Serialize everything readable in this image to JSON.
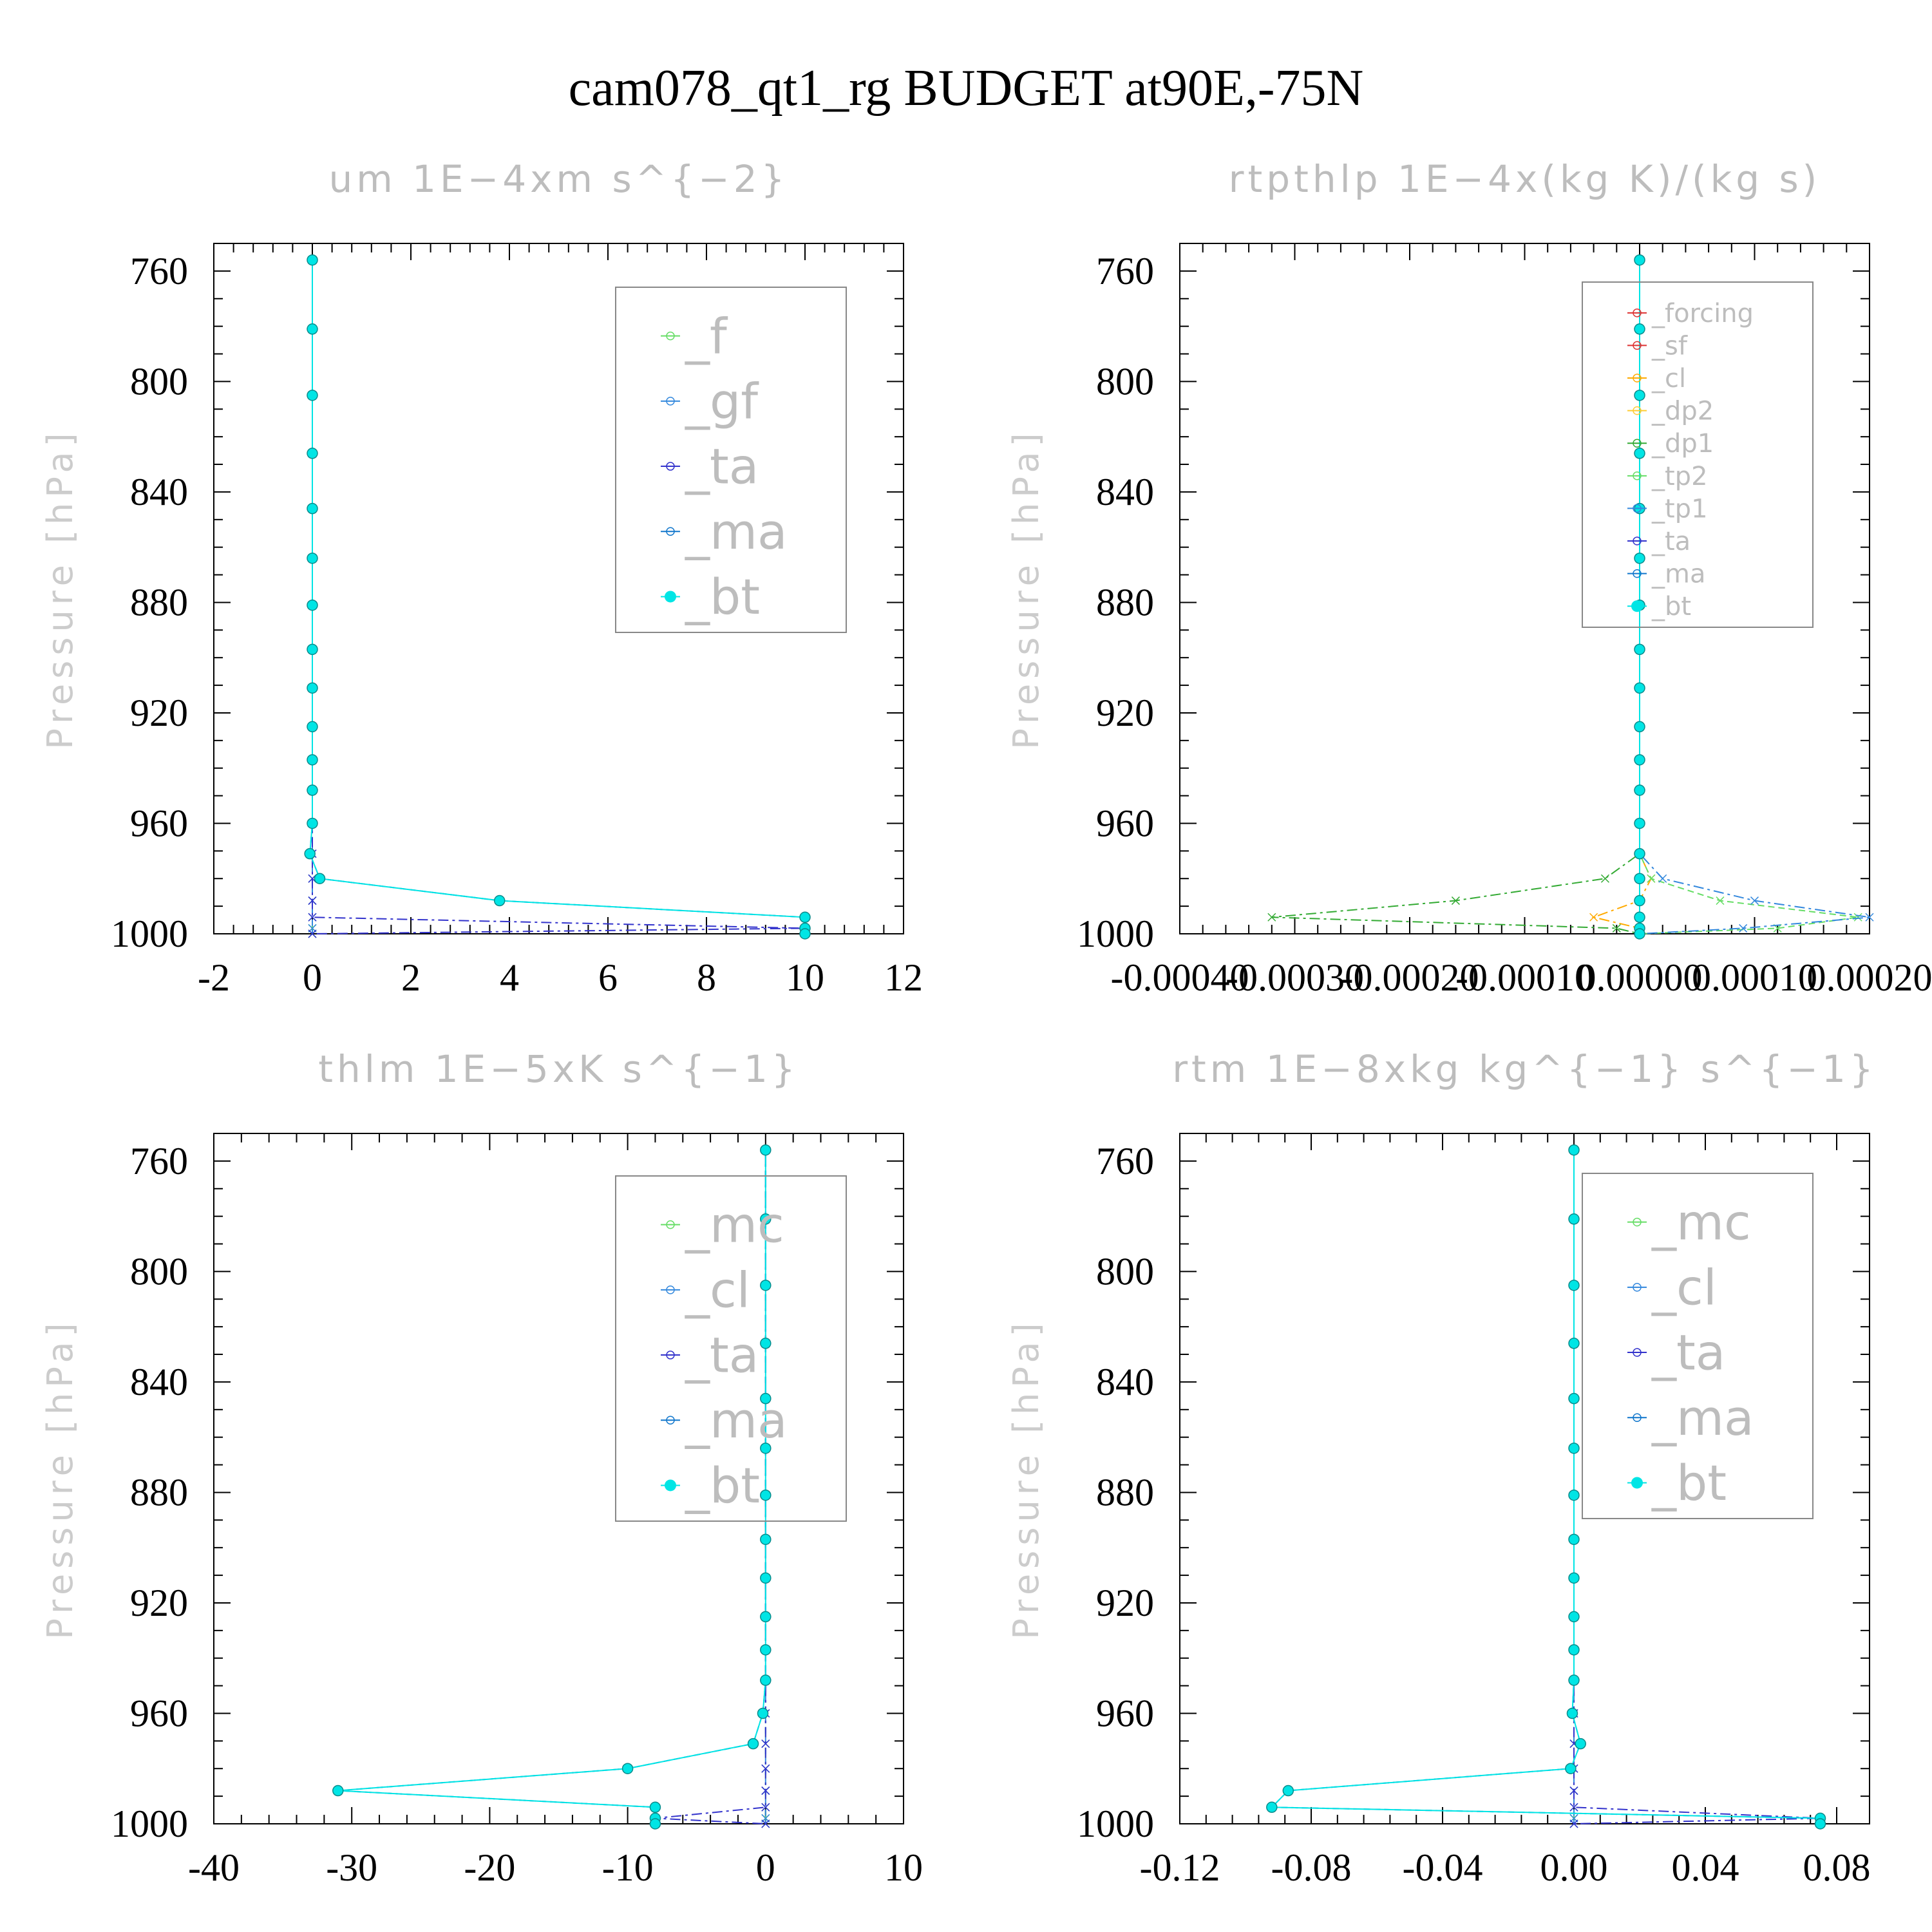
{
  "title": "cam078_qt1_rg  BUDGET at90E,-75N",
  "chart_data": [
    {
      "type": "line",
      "title": "um   1E−4xm s^{−2}",
      "ylabel": "Pressure [hPa]",
      "xlim": [
        -2,
        12
      ],
      "ylim": [
        1000,
        750
      ],
      "xticks": [
        -2,
        0,
        2,
        4,
        6,
        8,
        10,
        12
      ],
      "xtick_labels": [
        "-2",
        "0",
        "2",
        "4",
        "6",
        "8",
        "10",
        "12"
      ],
      "yticks": [
        760,
        800,
        840,
        880,
        920,
        960,
        1000
      ],
      "legend": [
        "_f",
        "_gf",
        "_ta",
        "_ma",
        "_bt"
      ],
      "legend_colors": [
        "#66dd66",
        "#3388dd",
        "#3333cc",
        "#1177cc",
        "#00e5e5"
      ],
      "pressure": [
        756,
        781,
        805,
        826,
        846,
        864,
        881,
        897,
        911,
        925,
        937,
        948,
        960,
        971,
        980,
        988,
        994,
        998,
        1000
      ],
      "series": [
        {
          "name": "_f",
          "values": [
            0,
            0,
            0,
            0,
            0,
            0,
            0,
            0,
            0,
            0,
            0,
            0,
            0,
            0,
            0,
            0,
            0,
            0,
            0
          ]
        },
        {
          "name": "_gf",
          "values": [
            0,
            0,
            0,
            0,
            0,
            0,
            0,
            0,
            0,
            0,
            0,
            0,
            0,
            0,
            0,
            0,
            0,
            0,
            0
          ]
        },
        {
          "name": "_ta",
          "values": [
            0,
            0,
            0,
            0,
            0,
            0,
            0,
            0,
            0,
            0,
            0,
            0,
            0,
            0,
            0,
            0,
            0,
            10,
            0
          ]
        },
        {
          "name": "_ma",
          "values": [
            0,
            0,
            0,
            0,
            0,
            0,
            0,
            0,
            0,
            0,
            0,
            0,
            0,
            -0.05,
            0.15,
            3.8,
            10,
            10,
            10
          ]
        },
        {
          "name": "_bt",
          "values": [
            0,
            0,
            0,
            0,
            0,
            0,
            0,
            0,
            0,
            0,
            0,
            0,
            0,
            -0.05,
            0.15,
            3.8,
            10,
            10,
            10
          ]
        }
      ]
    },
    {
      "type": "line",
      "title": "rtpthlp   1E−4x(kg K)/(kg s)",
      "ylabel": "Pressure [hPa]",
      "xlim": [
        -0.0004,
        0.0002
      ],
      "ylim": [
        1000,
        750
      ],
      "xticks": [
        -0.0004,
        -0.0003,
        -0.0002,
        -0.0001,
        0,
        0.0001,
        0.0002
      ],
      "xtick_labels": [
        "-0.00040",
        "-0.00030",
        "-0.00020",
        "-0.00010",
        "0.00000",
        "0.00010",
        "0.00020"
      ],
      "yticks": [
        760,
        800,
        840,
        880,
        920,
        960,
        1000
      ],
      "legend": [
        "_forcing",
        "_sf",
        "_cl",
        "_dp2",
        "_dp1",
        "_tp2",
        "_tp1",
        "_ta",
        "_ma",
        "_bt"
      ],
      "legend_colors": [
        "#dd3333",
        "#dd3333",
        "#ffaa00",
        "#ffcc33",
        "#33aa33",
        "#66dd66",
        "#3388dd",
        "#3333cc",
        "#1177cc",
        "#00e5e5"
      ],
      "pressure": [
        756,
        781,
        805,
        826,
        846,
        864,
        881,
        897,
        911,
        925,
        937,
        948,
        960,
        971,
        980,
        988,
        994,
        998,
        1000
      ],
      "series": [
        {
          "name": "_forcing",
          "values": [
            0,
            0,
            0,
            0,
            0,
            0,
            0,
            0,
            0,
            0,
            0,
            0,
            0,
            0,
            0,
            0,
            0,
            0,
            0
          ]
        },
        {
          "name": "_sf",
          "values": [
            0,
            0,
            0,
            0,
            0,
            0,
            0,
            0,
            0,
            0,
            0,
            0,
            0,
            0,
            0,
            0,
            0,
            0,
            0
          ]
        },
        {
          "name": "_cl",
          "values": [
            0,
            0,
            0,
            0,
            0,
            0,
            0,
            0,
            0,
            0,
            0,
            0,
            0,
            0,
            1e-05,
            0,
            -4e-05,
            0,
            0
          ]
        },
        {
          "name": "_dp2",
          "values": [
            0,
            0,
            0,
            0,
            0,
            0,
            0,
            0,
            0,
            0,
            0,
            0,
            0,
            0,
            0,
            0,
            0,
            0,
            0
          ]
        },
        {
          "name": "_dp1",
          "values": [
            0,
            0,
            0,
            0,
            0,
            0,
            0,
            0,
            0,
            0,
            0,
            0,
            0,
            0,
            -3e-05,
            -0.00016,
            -0.00032,
            -2e-05,
            0
          ]
        },
        {
          "name": "_tp2",
          "values": [
            0,
            0,
            0,
            0,
            0,
            0,
            0,
            0,
            0,
            0,
            0,
            0,
            0,
            0,
            1e-05,
            7e-05,
            0.00019,
            0.00012,
            0
          ]
        },
        {
          "name": "_tp1",
          "values": [
            0,
            0,
            0,
            0,
            0,
            0,
            0,
            0,
            0,
            0,
            0,
            0,
            0,
            0,
            2e-05,
            0.0001,
            0.0002,
            9e-05,
            0
          ]
        },
        {
          "name": "_ta",
          "values": [
            0,
            0,
            0,
            0,
            0,
            0,
            0,
            0,
            0,
            0,
            0,
            0,
            0,
            0,
            0,
            0,
            0,
            0,
            0
          ]
        },
        {
          "name": "_ma",
          "values": [
            0,
            0,
            0,
            0,
            0,
            0,
            0,
            0,
            0,
            0,
            0,
            0,
            0,
            0,
            0,
            0,
            0,
            0,
            0
          ]
        },
        {
          "name": "_bt",
          "values": [
            0,
            0,
            0,
            0,
            0,
            0,
            0,
            0,
            0,
            0,
            0,
            0,
            0,
            0,
            0,
            0,
            0,
            0,
            0
          ]
        }
      ]
    },
    {
      "type": "line",
      "title": "thlm   1E−5xK s^{−1}",
      "ylabel": "Pressure [hPa]",
      "xlim": [
        -40,
        10
      ],
      "ylim": [
        1000,
        750
      ],
      "xticks": [
        -40,
        -30,
        -20,
        -10,
        0,
        10
      ],
      "xtick_labels": [
        "-40",
        "-30",
        "-20",
        "-10",
        "0",
        "10"
      ],
      "yticks": [
        760,
        800,
        840,
        880,
        920,
        960,
        1000
      ],
      "legend": [
        "_mc",
        "_cl",
        "_ta",
        "_ma",
        "_bt"
      ],
      "legend_colors": [
        "#66dd66",
        "#3388dd",
        "#3333cc",
        "#1177cc",
        "#00e5e5"
      ],
      "pressure": [
        756,
        781,
        805,
        826,
        846,
        864,
        881,
        897,
        911,
        925,
        937,
        948,
        960,
        971,
        980,
        988,
        994,
        998,
        1000
      ],
      "series": [
        {
          "name": "_mc",
          "values": [
            0,
            0,
            0,
            0,
            0,
            0,
            0,
            0,
            0,
            0,
            0,
            0,
            0,
            0,
            0,
            0,
            0,
            0,
            0
          ]
        },
        {
          "name": "_cl",
          "values": [
            0,
            0,
            0,
            0,
            0,
            0,
            0,
            0,
            0,
            0,
            0,
            0,
            0,
            0,
            0,
            0,
            0,
            0,
            0
          ]
        },
        {
          "name": "_ta",
          "values": [
            0,
            0,
            0,
            0,
            0,
            0,
            0,
            0,
            0,
            0,
            0,
            0,
            0,
            0,
            0,
            0,
            0,
            -8,
            0
          ]
        },
        {
          "name": "_ma",
          "values": [
            0,
            0,
            0,
            0,
            0,
            0,
            0,
            0,
            0,
            0,
            0,
            0,
            -0.2,
            -0.9,
            -10,
            -31,
            -8,
            -8,
            -8
          ]
        },
        {
          "name": "_bt",
          "values": [
            0,
            0,
            0,
            0,
            0,
            0,
            0,
            0,
            0,
            0,
            0,
            0,
            -0.2,
            -0.9,
            -10,
            -31,
            -8,
            -8,
            -8
          ]
        }
      ]
    },
    {
      "type": "line",
      "title": "rtm   1E−8xkg kg^{−1} s^{−1}",
      "ylabel": "Pressure [hPa]",
      "xlim": [
        -0.12,
        0.09
      ],
      "ylim": [
        1000,
        750
      ],
      "xticks": [
        -0.12,
        -0.08,
        -0.04,
        0,
        0.04,
        0.08
      ],
      "xtick_labels": [
        "-0.12",
        "-0.08",
        "-0.04",
        "0.00",
        "0.04",
        "0.08"
      ],
      "yticks": [
        760,
        800,
        840,
        880,
        920,
        960,
        1000
      ],
      "legend": [
        "_mc",
        "_cl",
        "_ta",
        "_ma",
        "_bt"
      ],
      "legend_colors": [
        "#66dd66",
        "#3388dd",
        "#3333cc",
        "#1177cc",
        "#00e5e5"
      ],
      "pressure": [
        756,
        781,
        805,
        826,
        846,
        864,
        881,
        897,
        911,
        925,
        937,
        948,
        960,
        971,
        980,
        988,
        994,
        998,
        1000
      ],
      "series": [
        {
          "name": "_mc",
          "values": [
            0,
            0,
            0,
            0,
            0,
            0,
            0,
            0,
            0,
            0,
            0,
            0,
            0,
            0,
            0,
            0,
            0,
            0,
            0
          ]
        },
        {
          "name": "_cl",
          "values": [
            0,
            0,
            0,
            0,
            0,
            0,
            0,
            0,
            0,
            0,
            0,
            0,
            0,
            0,
            0,
            0,
            0,
            0,
            0
          ]
        },
        {
          "name": "_ta",
          "values": [
            0,
            0,
            0,
            0,
            0,
            0,
            0,
            0,
            0,
            0,
            0,
            0,
            0,
            0,
            0,
            0,
            0,
            0.075,
            0
          ]
        },
        {
          "name": "_ma",
          "values": [
            0,
            0,
            0,
            0,
            0,
            0,
            0,
            0,
            0,
            0,
            0,
            0,
            -0.0005,
            0.002,
            -0.001,
            -0.087,
            -0.092,
            0.075,
            0.075
          ]
        },
        {
          "name": "_bt",
          "values": [
            0,
            0,
            0,
            0,
            0,
            0,
            0,
            0,
            0,
            0,
            0,
            0,
            -0.0005,
            0.002,
            -0.001,
            -0.087,
            -0.092,
            0.075,
            0.075
          ]
        }
      ]
    }
  ]
}
